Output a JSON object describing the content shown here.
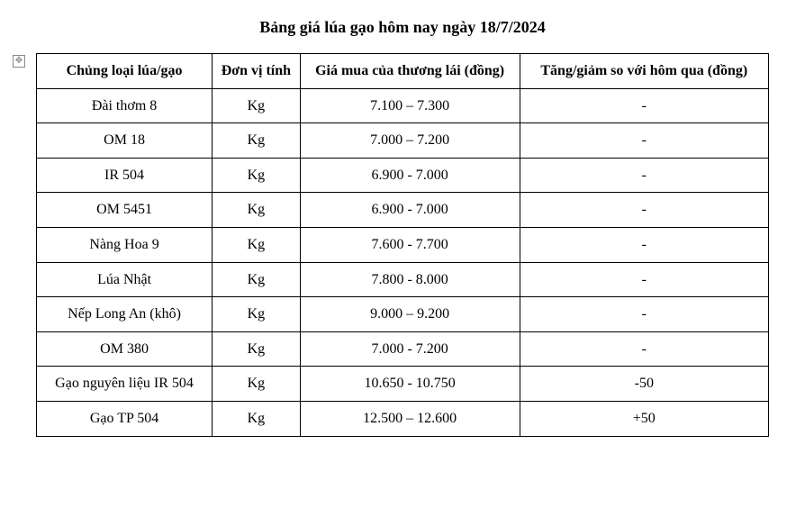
{
  "title": "Bảng giá lúa gạo hôm nay ngày 18/7/2024",
  "table": {
    "type": "table",
    "border_color": "#000000",
    "background_color": "#ffffff",
    "text_color": "#000000",
    "font_family": "Times New Roman",
    "header_fontsize": 16,
    "cell_fontsize": 16,
    "column_widths_pct": [
      24,
      12,
      30,
      34
    ],
    "columns": [
      "Chủng loại lúa/gạo",
      "Đơn vị tính",
      "Giá mua của thương lái (đồng)",
      "Tăng/giảm so với hôm qua (đồng)"
    ],
    "rows": [
      [
        "Đài thơm 8",
        "Kg",
        "7.100 – 7.300",
        "-"
      ],
      [
        "OM 18",
        "Kg",
        "7.000 – 7.200",
        "-"
      ],
      [
        "IR 504",
        "Kg",
        "6.900 - 7.000",
        "-"
      ],
      [
        "OM 5451",
        "Kg",
        "6.900 - 7.000",
        "-"
      ],
      [
        "Nàng Hoa 9",
        "Kg",
        "7.600 - 7.700",
        "-"
      ],
      [
        "Lúa Nhật",
        "Kg",
        "7.800 - 8.000",
        "-"
      ],
      [
        "Nếp Long An (khô)",
        "Kg",
        "9.000 – 9.200",
        "-"
      ],
      [
        "OM 380",
        "Kg",
        "7.000 - 7.200",
        "-"
      ],
      [
        "Gạo nguyên liệu IR 504",
        "Kg",
        "10.650 - 10.750",
        "-50"
      ],
      [
        "Gạo TP 504",
        "Kg",
        "12.500 – 12.600",
        "+50"
      ]
    ]
  }
}
